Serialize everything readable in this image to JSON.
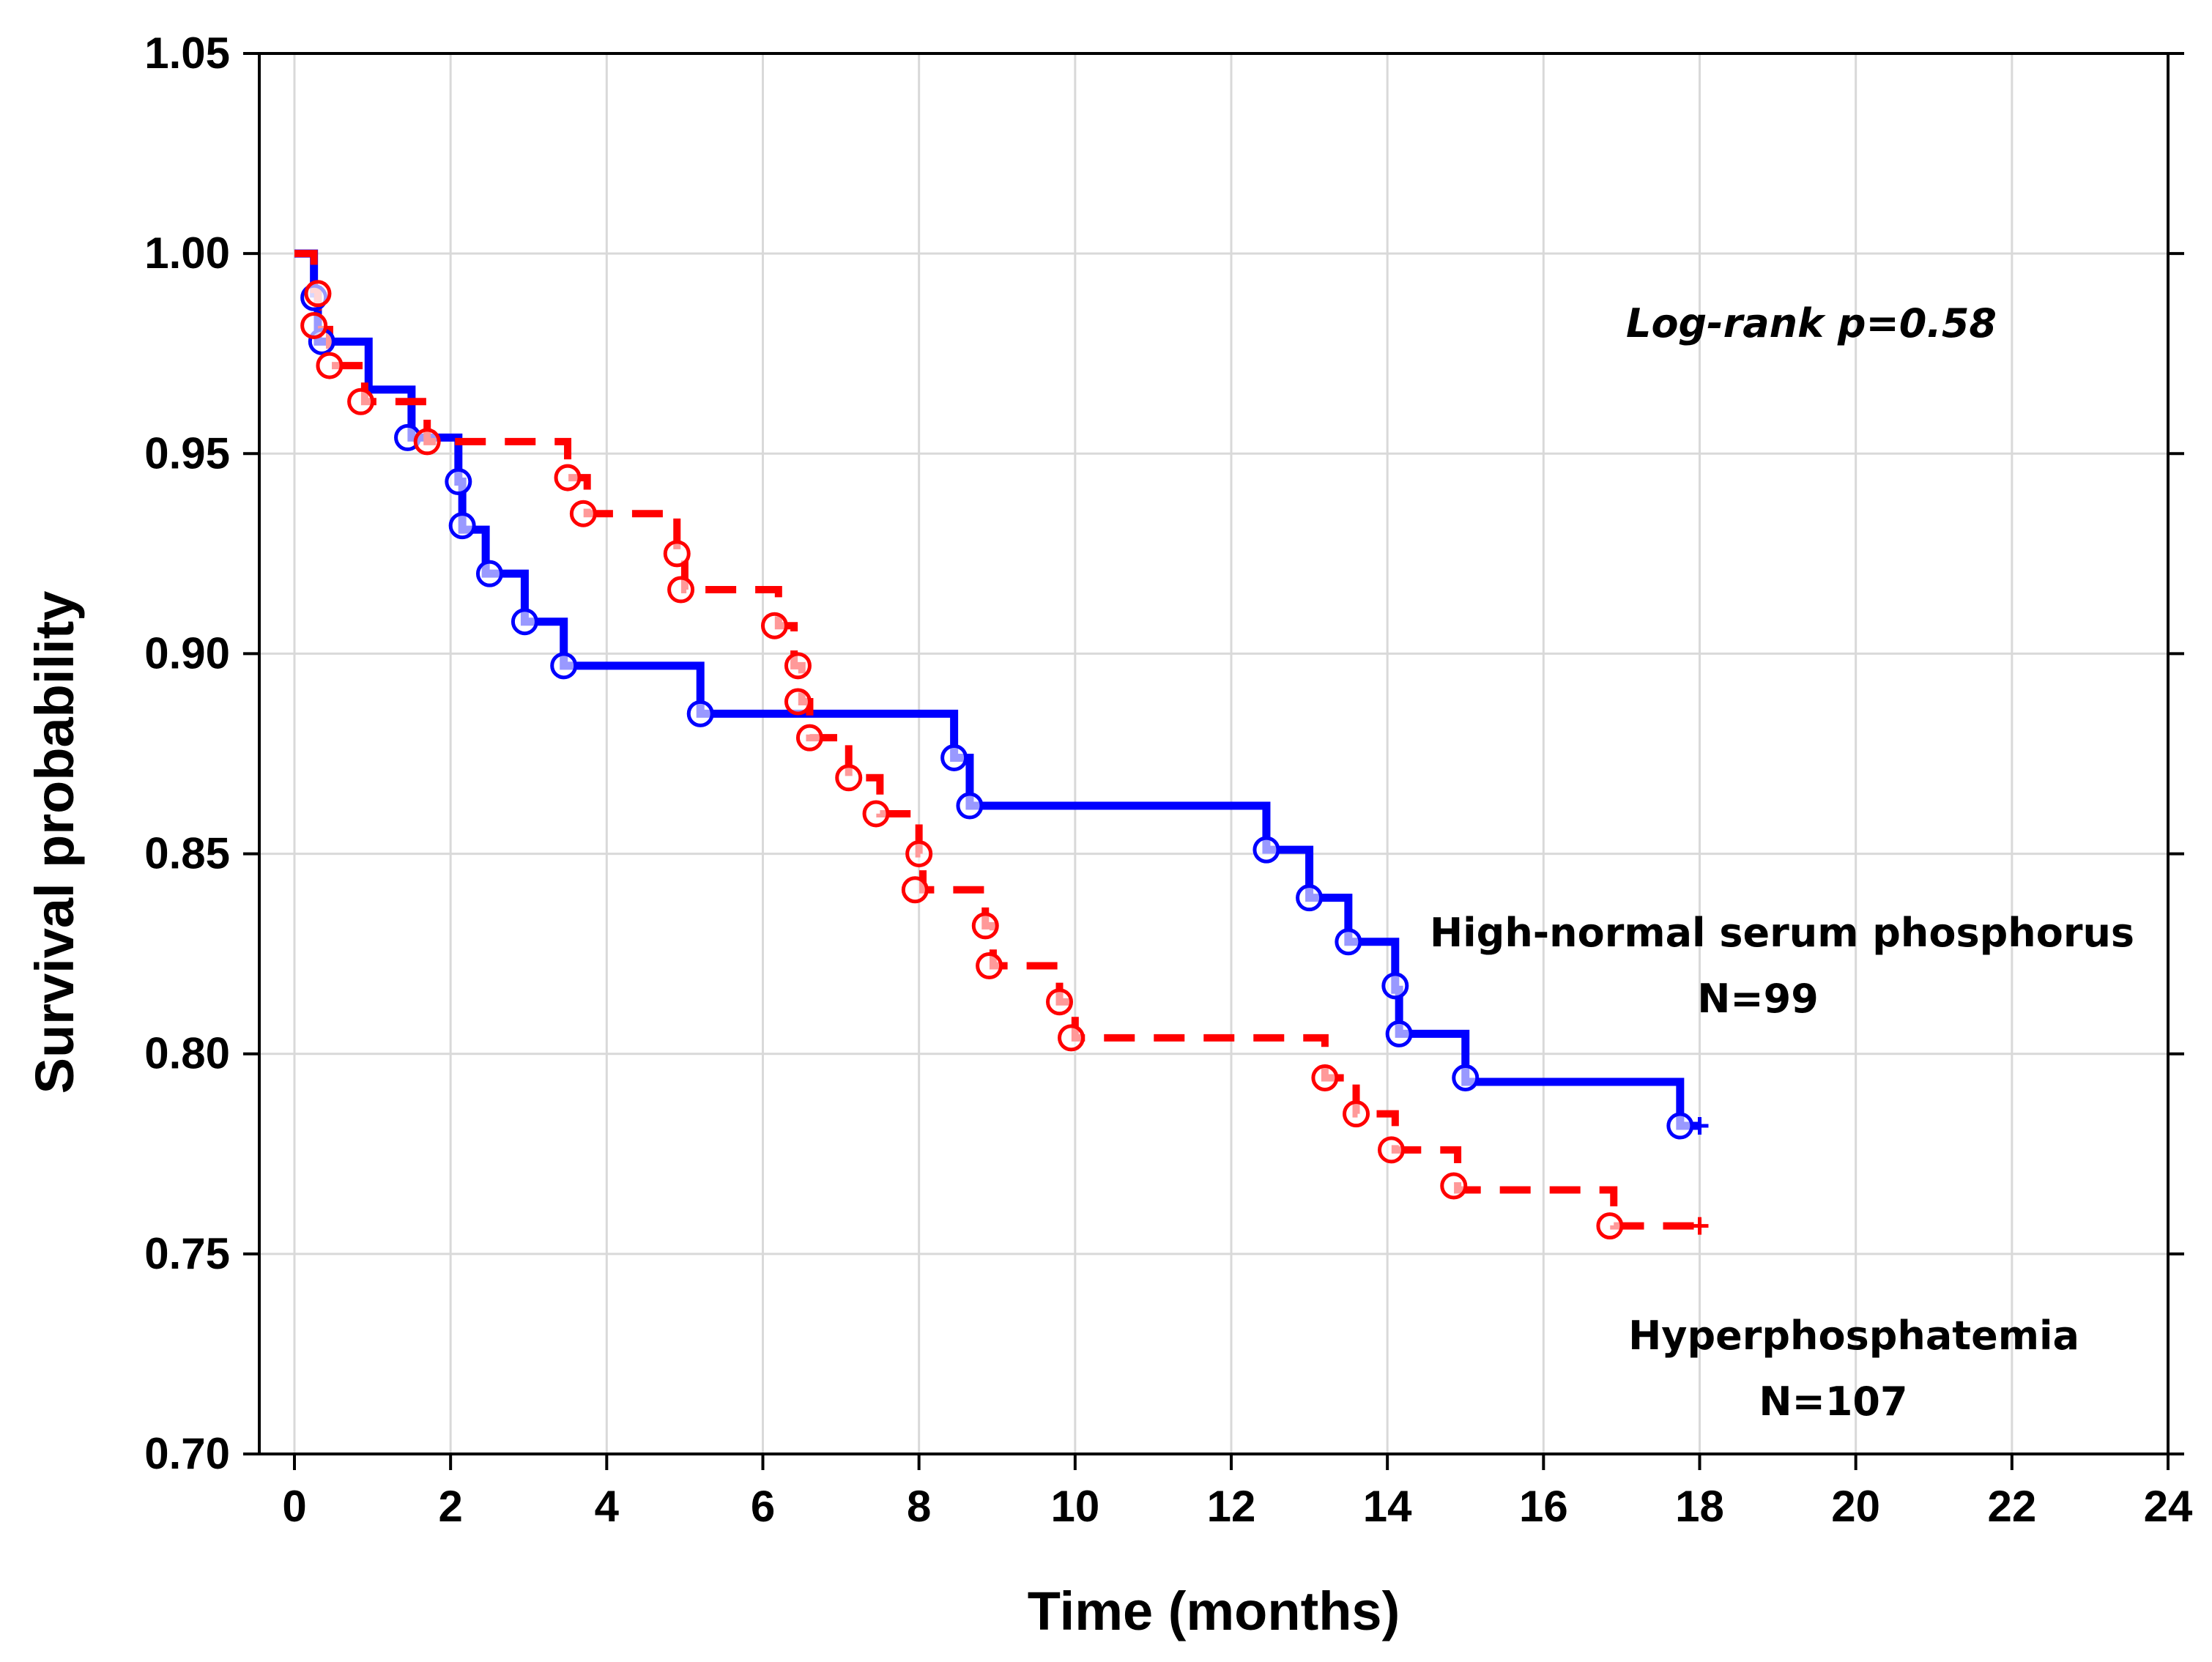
{
  "chart_data": {
    "type": "line",
    "subtype": "kaplan-meier",
    "xlabel": "Time (months)",
    "ylabel": "Survival probability",
    "xlim": [
      0,
      24
    ],
    "ylim": [
      0.7,
      1.05
    ],
    "xticks": [
      "0",
      "2",
      "4",
      "6",
      "8",
      "10",
      "12",
      "14",
      "16",
      "18",
      "20",
      "22",
      "24"
    ],
    "yticks": [
      "0.70",
      "0.75",
      "0.80",
      "0.85",
      "0.90",
      "0.95",
      "1.00",
      "1.05"
    ],
    "grid": true,
    "annotation": "Log-rank p=0.58",
    "series": [
      {
        "name": "High-normal serum phosphorus",
        "n_label": "N=99",
        "color": "#0000ff",
        "style": "solid",
        "steps": [
          [
            0,
            1.0
          ],
          [
            0.25,
            0.99
          ],
          [
            0.3,
            0.978
          ],
          [
            0.95,
            0.966
          ],
          [
            1.5,
            0.954
          ],
          [
            2.1,
            0.943
          ],
          [
            2.15,
            0.931
          ],
          [
            2.45,
            0.92
          ],
          [
            2.95,
            0.908
          ],
          [
            3.45,
            0.897
          ],
          [
            5.2,
            0.885
          ],
          [
            8.45,
            0.874
          ],
          [
            8.65,
            0.862
          ],
          [
            12.45,
            0.851
          ],
          [
            13.0,
            0.839
          ],
          [
            13.5,
            0.828
          ],
          [
            14.1,
            0.816
          ],
          [
            14.15,
            0.805
          ],
          [
            15.0,
            0.793
          ],
          [
            17.75,
            0.782
          ],
          [
            18.0,
            0.782
          ]
        ],
        "markers": [
          [
            0.25,
            0.989
          ],
          [
            0.35,
            0.978
          ],
          [
            1.45,
            0.954
          ],
          [
            2.1,
            0.943
          ],
          [
            2.15,
            0.932
          ],
          [
            2.5,
            0.92
          ],
          [
            2.95,
            0.908
          ],
          [
            3.45,
            0.897
          ],
          [
            5.2,
            0.885
          ],
          [
            8.45,
            0.874
          ],
          [
            8.65,
            0.862
          ],
          [
            12.45,
            0.851
          ],
          [
            13.0,
            0.839
          ],
          [
            13.5,
            0.828
          ],
          [
            14.1,
            0.817
          ],
          [
            14.15,
            0.805
          ],
          [
            15.0,
            0.794
          ],
          [
            17.75,
            0.782
          ]
        ]
      },
      {
        "name": "Hyperphosphatemia",
        "n_label": "N=107",
        "color": "#ff0000",
        "style": "dashed",
        "steps": [
          [
            0,
            1.0
          ],
          [
            0.25,
            0.991
          ],
          [
            0.3,
            0.981
          ],
          [
            0.45,
            0.972
          ],
          [
            0.9,
            0.963
          ],
          [
            1.7,
            0.953
          ],
          [
            3.5,
            0.944
          ],
          [
            3.75,
            0.935
          ],
          [
            4.9,
            0.925
          ],
          [
            5.0,
            0.916
          ],
          [
            6.2,
            0.907
          ],
          [
            6.4,
            0.897
          ],
          [
            6.5,
            0.888
          ],
          [
            6.6,
            0.879
          ],
          [
            7.1,
            0.869
          ],
          [
            7.5,
            0.86
          ],
          [
            8.0,
            0.85
          ],
          [
            8.05,
            0.841
          ],
          [
            8.85,
            0.832
          ],
          [
            8.95,
            0.822
          ],
          [
            9.8,
            0.813
          ],
          [
            10.0,
            0.804
          ],
          [
            13.2,
            0.794
          ],
          [
            13.6,
            0.785
          ],
          [
            14.1,
            0.776
          ],
          [
            14.9,
            0.766
          ],
          [
            16.9,
            0.757
          ],
          [
            18.0,
            0.757
          ]
        ],
        "markers": [
          [
            0.3,
            0.99
          ],
          [
            0.25,
            0.982
          ],
          [
            0.45,
            0.972
          ],
          [
            0.85,
            0.963
          ],
          [
            1.7,
            0.953
          ],
          [
            3.5,
            0.944
          ],
          [
            3.7,
            0.935
          ],
          [
            4.9,
            0.925
          ],
          [
            4.95,
            0.916
          ],
          [
            6.15,
            0.907
          ],
          [
            6.45,
            0.897
          ],
          [
            6.45,
            0.888
          ],
          [
            6.6,
            0.879
          ],
          [
            7.1,
            0.869
          ],
          [
            7.45,
            0.86
          ],
          [
            8.0,
            0.85
          ],
          [
            7.95,
            0.841
          ],
          [
            8.85,
            0.832
          ],
          [
            8.9,
            0.822
          ],
          [
            9.8,
            0.813
          ],
          [
            9.95,
            0.804
          ],
          [
            13.2,
            0.794
          ],
          [
            13.6,
            0.785
          ],
          [
            14.05,
            0.776
          ],
          [
            14.85,
            0.767
          ],
          [
            16.85,
            0.757
          ]
        ]
      }
    ]
  }
}
